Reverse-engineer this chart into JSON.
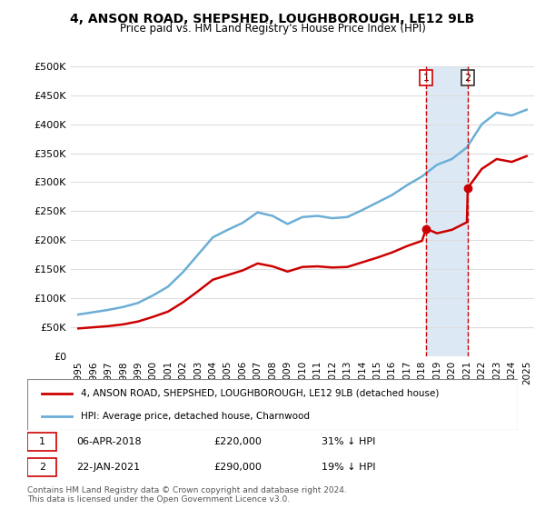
{
  "title": "4, ANSON ROAD, SHEPSHED, LOUGHBOROUGH, LE12 9LB",
  "subtitle": "Price paid vs. HM Land Registry's House Price Index (HPI)",
  "property_label": "4, ANSON ROAD, SHEPSHED, LOUGHBOROUGH, LE12 9LB (detached house)",
  "hpi_label": "HPI: Average price, detached house, Charnwood",
  "footer": "Contains HM Land Registry data © Crown copyright and database right 2024.\nThis data is licensed under the Open Government Licence v3.0.",
  "sale1_date": "06-APR-2018",
  "sale1_price": 220000,
  "sale1_pct": "31% ↓ HPI",
  "sale2_date": "22-JAN-2021",
  "sale2_price": 290000,
  "sale2_pct": "19% ↓ HPI",
  "sale1_x": 2018.27,
  "sale2_x": 2021.06,
  "hpi_color": "#6baed6",
  "property_color": "#cc0000",
  "vline_color": "#cc0000",
  "highlight_color": "#dce9f5",
  "ylim": [
    0,
    500000
  ],
  "yticks": [
    0,
    50000,
    100000,
    150000,
    200000,
    250000,
    300000,
    350000,
    400000,
    450000,
    500000
  ],
  "ytick_labels": [
    "£0",
    "£50K",
    "£100K",
    "£150K",
    "£200K",
    "£250K",
    "£300K",
    "£350K",
    "£400K",
    "£450K",
    "£500K"
  ],
  "hpi_years": [
    1995,
    1996,
    1997,
    1998,
    1999,
    2000,
    2001,
    2002,
    2003,
    2004,
    2005,
    2006,
    2007,
    2008,
    2009,
    2010,
    2011,
    2012,
    2013,
    2014,
    2015,
    2016,
    2017,
    2018,
    2019,
    2020,
    2021,
    2022,
    2023,
    2024,
    2025
  ],
  "hpi_values": [
    72000,
    76000,
    80000,
    85000,
    92000,
    105000,
    120000,
    145000,
    175000,
    205000,
    218000,
    230000,
    248000,
    242000,
    228000,
    240000,
    242000,
    238000,
    240000,
    252000,
    265000,
    278000,
    295000,
    310000,
    330000,
    340000,
    360000,
    400000,
    420000,
    415000,
    425000
  ],
  "prop_years": [
    1995,
    1996,
    1997,
    1998,
    1999,
    2000,
    2001,
    2002,
    2003,
    2004,
    2005,
    2006,
    2007,
    2008,
    2009,
    2010,
    2011,
    2012,
    2013,
    2014,
    2015,
    2016,
    2017,
    2018,
    2018.27,
    2019,
    2020,
    2021,
    2021.06,
    2022,
    2023,
    2024,
    2025
  ],
  "prop_values": [
    48000,
    50000,
    52000,
    55000,
    60000,
    68000,
    77000,
    93000,
    112000,
    132000,
    140000,
    148000,
    160000,
    155000,
    146000,
    154000,
    155000,
    153000,
    154000,
    162000,
    170000,
    179000,
    190000,
    199000,
    220000,
    212000,
    218000,
    231000,
    290000,
    323000,
    340000,
    335000,
    345000
  ],
  "xtick_years": [
    1995,
    1996,
    1997,
    1998,
    1999,
    2000,
    2001,
    2002,
    2003,
    2004,
    2005,
    2006,
    2007,
    2008,
    2009,
    2010,
    2011,
    2012,
    2013,
    2014,
    2015,
    2016,
    2017,
    2018,
    2019,
    2020,
    2021,
    2022,
    2023,
    2024,
    2025
  ]
}
